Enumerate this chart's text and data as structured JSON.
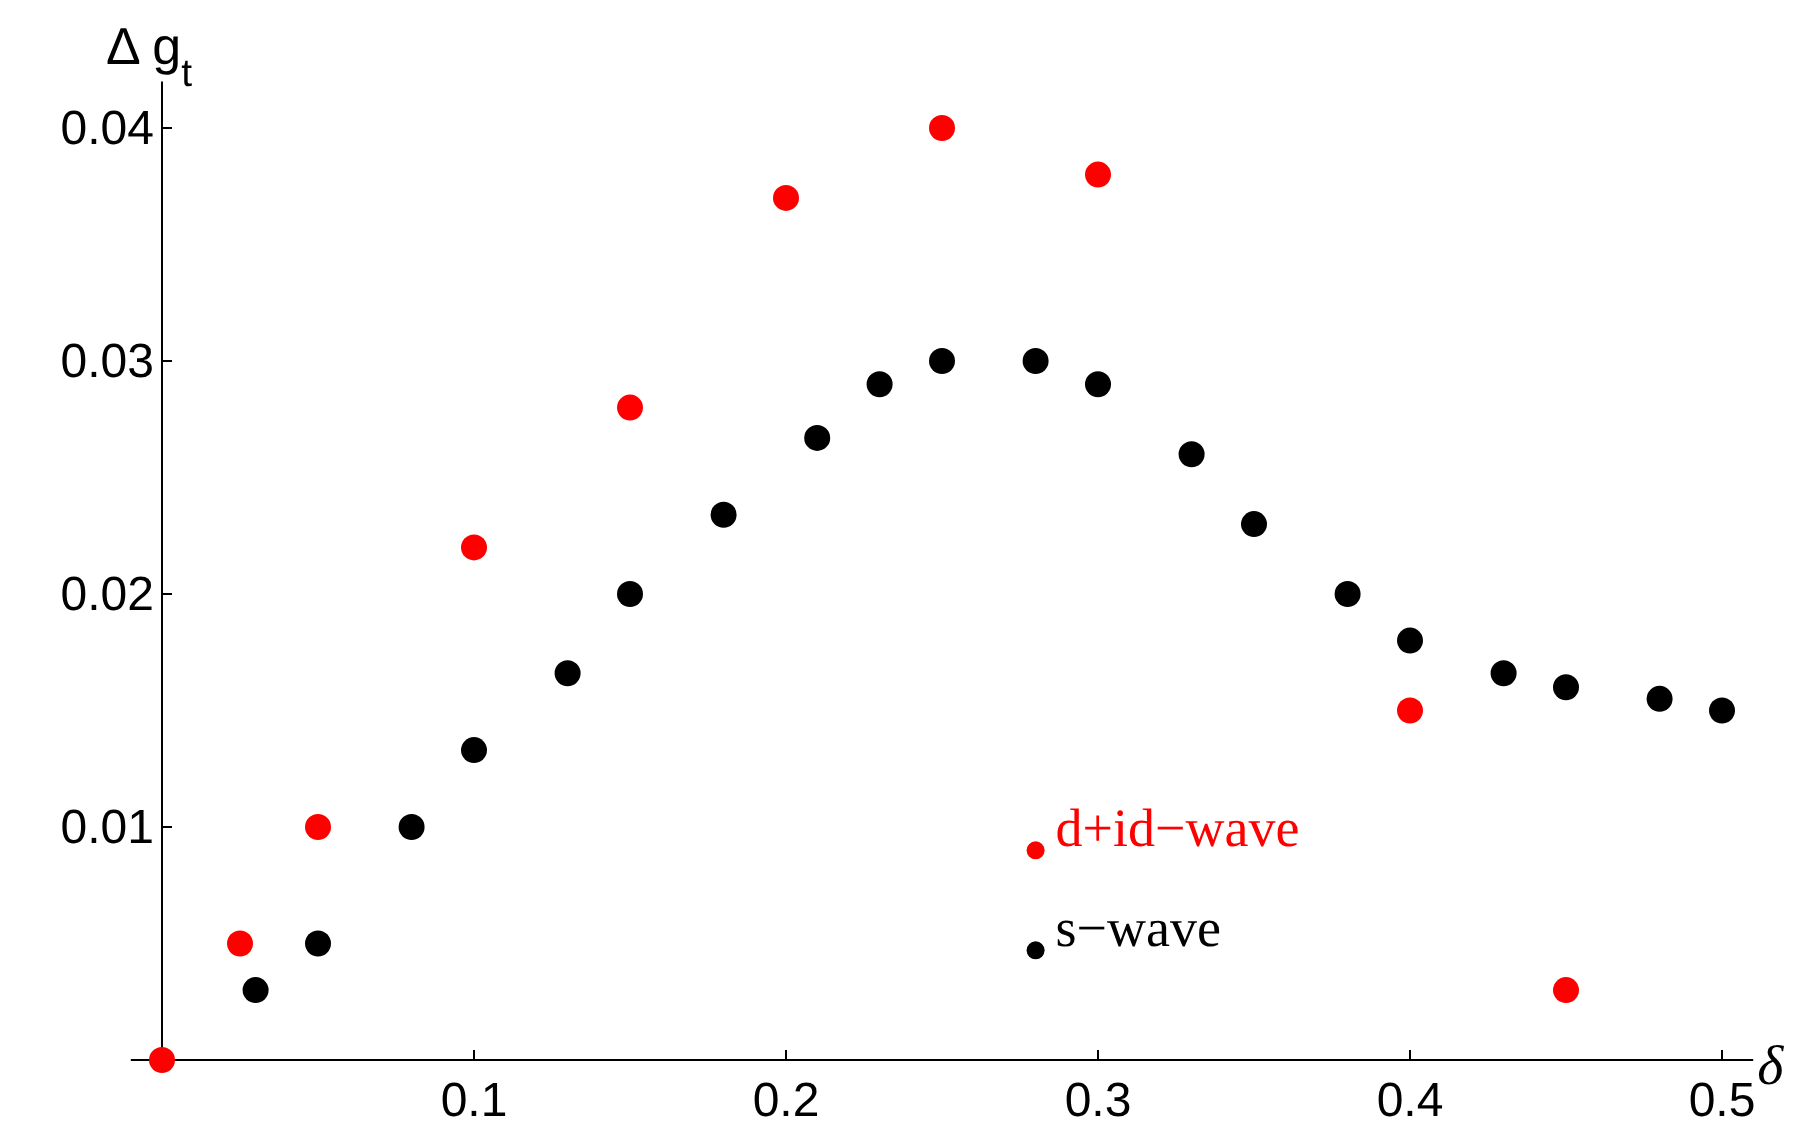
{
  "chart_data": {
    "type": "scatter",
    "xlabel": "δ",
    "ylabel": "Δ g$_{t}$",
    "xlim": [
      -0.01,
      0.51
    ],
    "ylim": [
      0,
      0.042
    ],
    "xticks": [
      0.1,
      0.2,
      0.3,
      0.4,
      0.5
    ],
    "yticks": [
      0.01,
      0.02,
      0.03,
      0.04
    ],
    "grid": false,
    "legend": "bottom",
    "marker": "circle",
    "series": [
      {
        "name": "d+id−wave",
        "color": "#ff0000",
        "x": [
          0,
          0.025,
          0.05,
          0.1,
          0.15,
          0.2,
          0.25,
          0.3,
          0.4,
          0.45
        ],
        "values": [
          0,
          0.005,
          0.01,
          0.022,
          0.028,
          0.037,
          0.04,
          0.038,
          0.015,
          0.003
        ]
      },
      {
        "name": "s−wave",
        "color": "#000000",
        "x": [
          0.03,
          0.05,
          0.08,
          0.1,
          0.13,
          0.15,
          0.18,
          0.21,
          0.23,
          0.25,
          0.28,
          0.3,
          0.33,
          0.35,
          0.38,
          0.4,
          0.43,
          0.45,
          0.48,
          0.5
        ],
        "values": [
          0.003,
          0.005,
          0.01,
          0.0133,
          0.0166,
          0.02,
          0.0234,
          0.0267,
          0.029,
          0.03,
          0.03,
          0.029,
          0.026,
          0.023,
          0.02,
          0.018,
          0.0166,
          0.016,
          0.0155,
          0.015
        ]
      }
    ]
  }
}
